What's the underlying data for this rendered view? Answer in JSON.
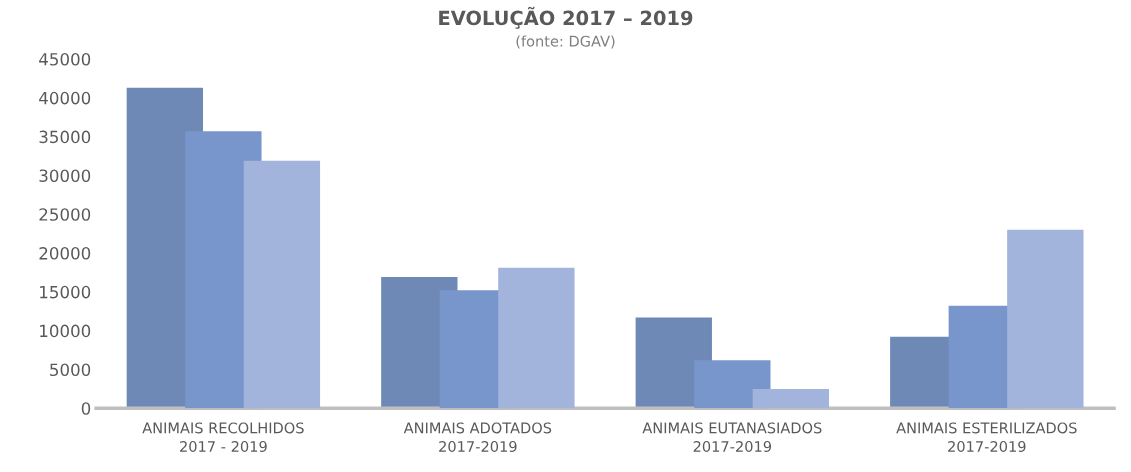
{
  "chart_data": {
    "type": "bar",
    "title": "EVOLUÇÃO 2017 – 2019",
    "subtitle": "(fonte: DGAV)",
    "categories": [
      "ANIMAIS RECOLHIDOS\n2017 - 2019",
      "ANIMAIS ADOTADOS\n2017-2019",
      "ANIMAIS EUTANASIADOS\n2017-2019",
      "ANIMAIS ESTERILIZADOS\n2017-2019"
    ],
    "series": [
      {
        "color": "#6f89b7",
        "values": [
          41300,
          16900,
          11700,
          9200
        ]
      },
      {
        "color": "#7896cc",
        "values": [
          35700,
          15200,
          6200,
          13200
        ]
      },
      {
        "color": "#a2b3dc",
        "values": [
          31900,
          18100,
          2500,
          23000
        ]
      }
    ],
    "ylim": [
      0,
      45000
    ],
    "yticks": [
      0,
      5000,
      10000,
      15000,
      20000,
      25000,
      30000,
      35000,
      40000,
      45000
    ],
    "grid": false
  }
}
